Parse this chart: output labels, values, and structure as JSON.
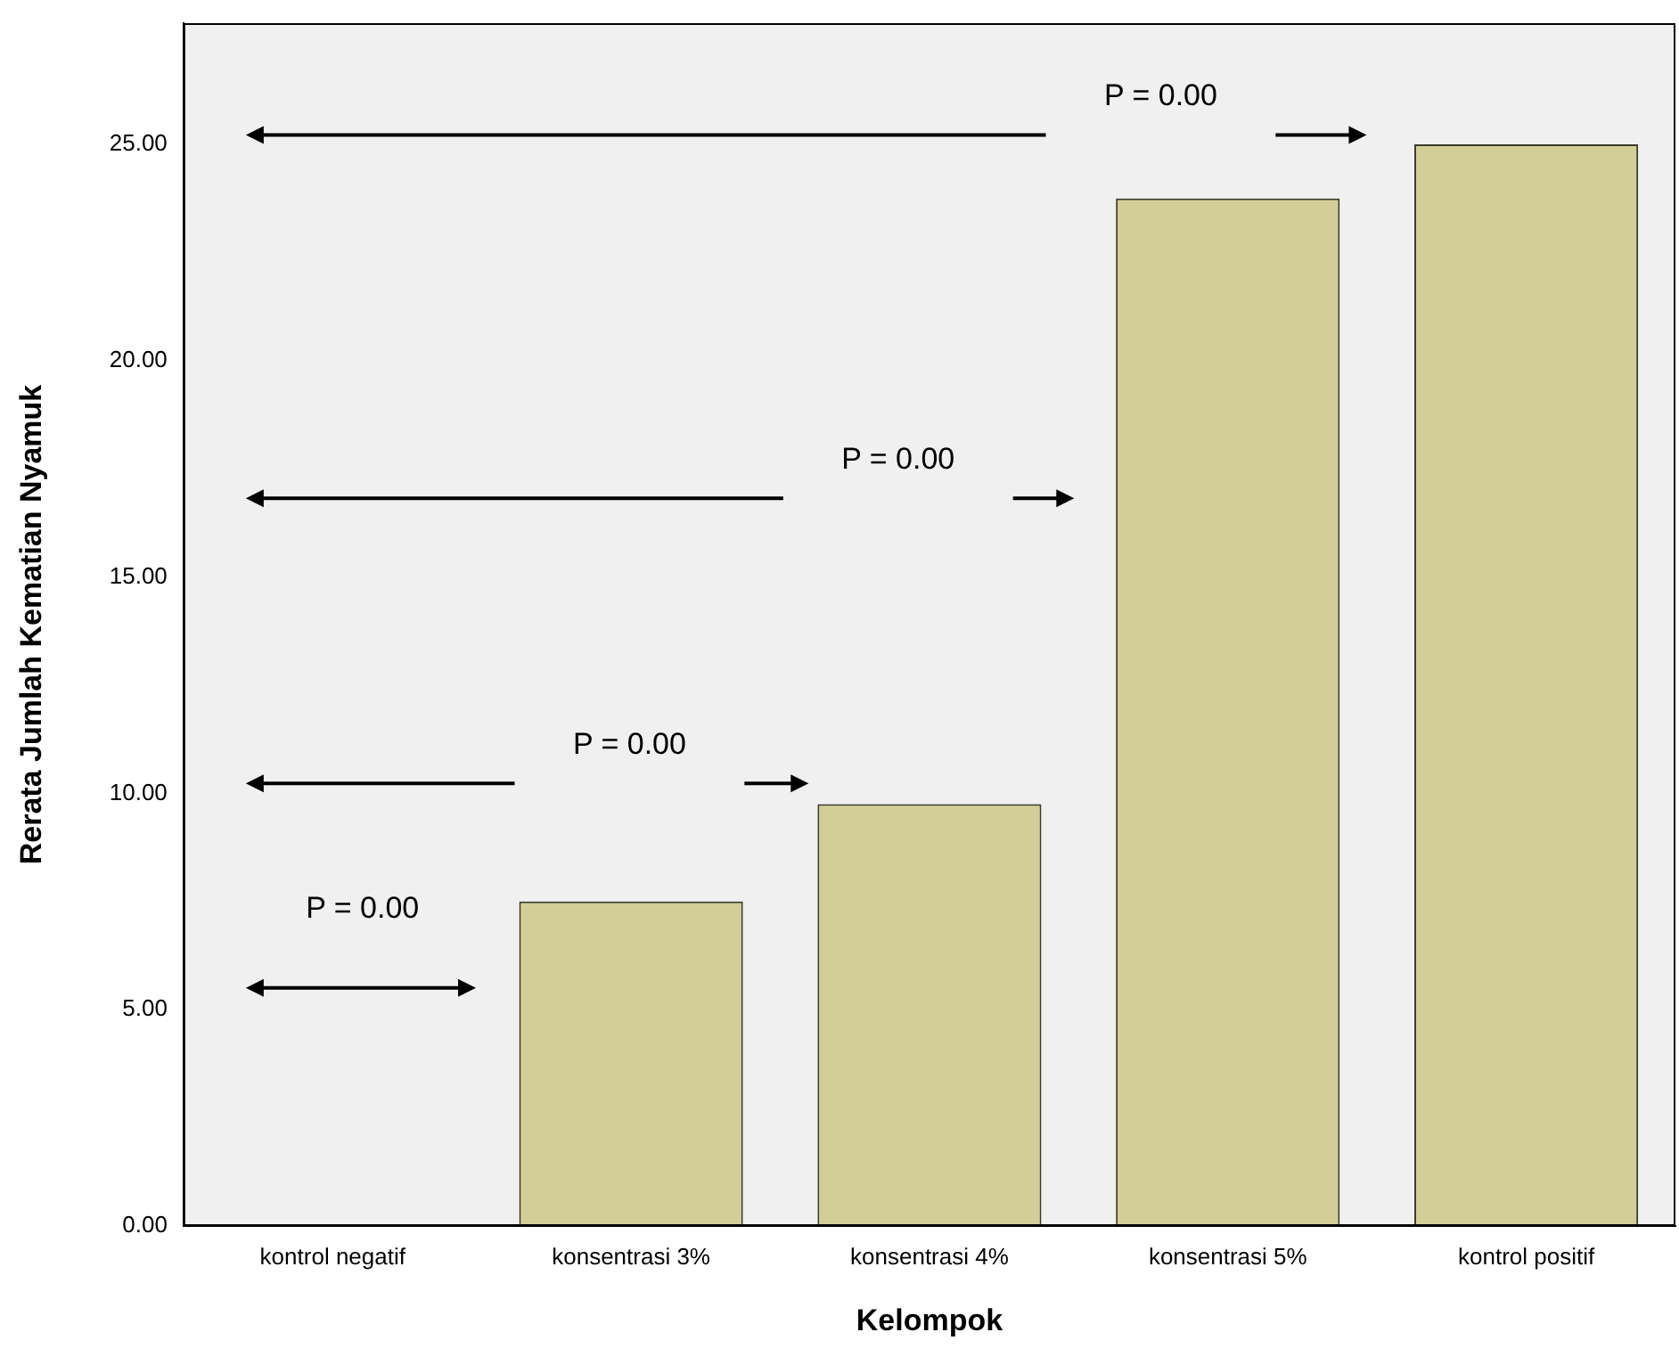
{
  "chart_data": {
    "type": "bar",
    "xlabel": "Kelompok",
    "ylabel": "Rerata Jumlah Kematian Nyamuk",
    "categories": [
      "kontrol negatif",
      "konsentrasi 3%",
      "konsentrasi 4%",
      "konsentrasi 5%",
      "kontrol positif"
    ],
    "values": [
      0,
      7.5,
      9.75,
      23.75,
      25
    ],
    "color": "#d3ce97",
    "ylim": [
      0,
      27.8
    ],
    "yticks": [
      {
        "value": 0,
        "label": "0.00"
      },
      {
        "value": 5,
        "label": "5.00"
      },
      {
        "value": 10,
        "label": "10.00"
      },
      {
        "value": 15,
        "label": "15.00"
      },
      {
        "value": 20,
        "label": "20.00"
      },
      {
        "value": 25,
        "label": "25.00"
      }
    ],
    "grid": false,
    "legend": false,
    "annotations": [
      "P = 0.00",
      "P = 0.00",
      "P = 0.00",
      "P = 0.00"
    ]
  }
}
